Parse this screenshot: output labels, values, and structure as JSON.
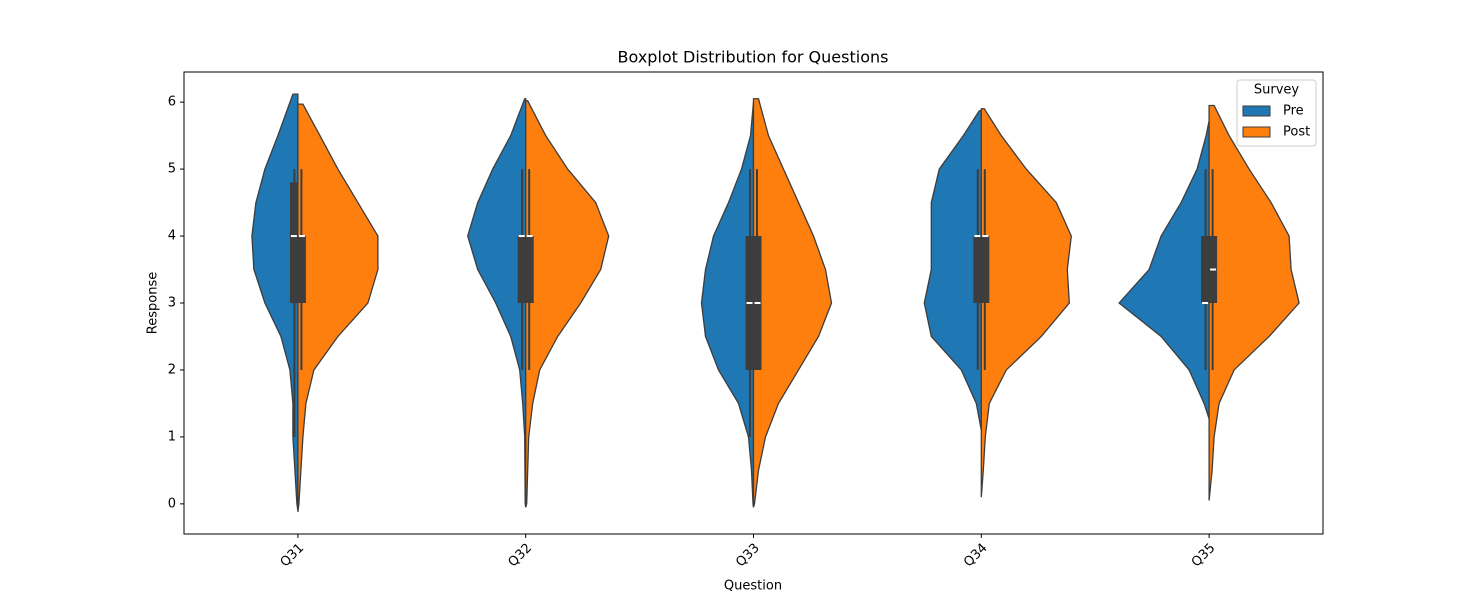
{
  "chart_data": {
    "type": "violin",
    "title": "Boxplot Distribution for Questions",
    "x_label": "Question",
    "y_label": "Response",
    "categories": [
      "Q31",
      "Q32",
      "Q33",
      "Q34",
      "Q35"
    ],
    "ylim": [
      -0.45,
      6.45
    ],
    "yticks": [
      0,
      1,
      2,
      3,
      4,
      5,
      6
    ],
    "legend_title": "Survey",
    "legend_position": "upper right",
    "series": [
      {
        "name": "Pre",
        "color": "#1f77b4",
        "violins": [
          {
            "y": [
              6.12,
              5.5,
              5,
              4.5,
              4,
              3.5,
              3,
              2.5,
              2,
              1.5,
              1,
              0.5,
              0,
              -0.1
            ],
            "density": [
              0.05,
              0.2,
              0.33,
              0.42,
              0.46,
              0.44,
              0.33,
              0.17,
              0.08,
              0.05,
              0.05,
              0.03,
              0.01,
              0
            ],
            "whislo": 1,
            "q1": 3,
            "median": 4,
            "q3": 4.8,
            "whishi": 5
          },
          {
            "y": [
              6.05,
              5.5,
              5,
              4.5,
              4,
              3.5,
              3,
              2.5,
              2,
              1.5,
              1,
              0,
              -0.05
            ],
            "density": [
              0.01,
              0.15,
              0.33,
              0.48,
              0.58,
              0.48,
              0.3,
              0.15,
              0.06,
              0.03,
              0.01,
              0.005,
              0
            ],
            "whislo": 2,
            "q1": 3,
            "median": 4,
            "q3": 4,
            "whishi": 5
          },
          {
            "y": [
              6,
              5.5,
              5,
              4.5,
              4,
              3.5,
              3,
              2.5,
              2,
              1.5,
              1,
              0.5,
              0,
              -0.05
            ],
            "density": [
              0,
              0.03,
              0.12,
              0.25,
              0.4,
              0.48,
              0.52,
              0.48,
              0.35,
              0.15,
              0.05,
              0.02,
              0.005,
              0
            ],
            "whislo": 1,
            "q1": 2,
            "median": 3,
            "q3": 4,
            "whishi": 5
          },
          {
            "y": [
              5.87,
              5.5,
              5,
              4.5,
              4,
              3.5,
              3,
              2.5,
              2,
              1.5,
              1.1
            ],
            "density": [
              0.02,
              0.18,
              0.42,
              0.5,
              0.5,
              0.5,
              0.57,
              0.5,
              0.2,
              0.05,
              0
            ],
            "whislo": 2,
            "q1": 3,
            "median": 4,
            "q3": 4,
            "whishi": 5
          },
          {
            "y": [
              5.72,
              5.5,
              5,
              4.5,
              4,
              3.5,
              3,
              2.5,
              2,
              1.5,
              1.27
            ],
            "density": [
              0,
              0.03,
              0.12,
              0.28,
              0.48,
              0.6,
              0.9,
              0.48,
              0.2,
              0.05,
              0
            ],
            "whislo": 2,
            "q1": 3,
            "median": 3,
            "q3": 4,
            "whishi": 5
          }
        ]
      },
      {
        "name": "Post",
        "color": "#ff7f0e",
        "violins": [
          {
            "y": [
              5.97,
              5.5,
              5,
              4.5,
              4,
              3.5,
              3,
              2.5,
              2,
              1.5,
              1,
              0.5,
              0,
              -0.12
            ],
            "density": [
              0.05,
              0.22,
              0.4,
              0.6,
              0.8,
              0.8,
              0.7,
              0.4,
              0.16,
              0.08,
              0.05,
              0.03,
              0.01,
              0
            ],
            "whislo": 2,
            "q1": 3,
            "median": 4,
            "q3": 4,
            "whishi": 5
          },
          {
            "y": [
              6.02,
              5.5,
              5,
              4.5,
              4,
              3.5,
              3,
              2.5,
              2,
              1.5,
              1,
              0,
              -0.05
            ],
            "density": [
              0.02,
              0.2,
              0.42,
              0.7,
              0.83,
              0.75,
              0.55,
              0.32,
              0.14,
              0.07,
              0.03,
              0.01,
              0
            ],
            "whislo": 2,
            "q1": 3,
            "median": 4,
            "q3": 4,
            "whishi": 5
          },
          {
            "y": [
              6.05,
              5.5,
              5,
              4.5,
              4,
              3.5,
              3,
              2.5,
              2,
              1.5,
              1,
              0.5,
              0,
              -0.05
            ],
            "density": [
              0.05,
              0.15,
              0.3,
              0.45,
              0.6,
              0.72,
              0.78,
              0.65,
              0.45,
              0.25,
              0.12,
              0.05,
              0.01,
              0
            ],
            "whislo": 2,
            "q1": 2,
            "median": 3,
            "q3": 4,
            "whishi": 5
          },
          {
            "y": [
              5.9,
              5.5,
              5,
              4.5,
              4,
              3.5,
              3,
              2.5,
              2,
              1.5,
              1,
              0.5,
              0.1
            ],
            "density": [
              0.03,
              0.2,
              0.45,
              0.75,
              0.9,
              0.86,
              0.88,
              0.6,
              0.25,
              0.08,
              0.04,
              0.02,
              0
            ],
            "whislo": 2,
            "q1": 3,
            "median": 4,
            "q3": 4,
            "whishi": 5
          },
          {
            "y": [
              5.95,
              5.5,
              5,
              4.5,
              4,
              3.5,
              3,
              2.5,
              2,
              1.5,
              1,
              0.5,
              0.05
            ],
            "density": [
              0.05,
              0.2,
              0.4,
              0.62,
              0.8,
              0.82,
              0.9,
              0.6,
              0.25,
              0.1,
              0.05,
              0.03,
              0
            ],
            "whislo": 2,
            "q1": 3,
            "median": 3.5,
            "q3": 4,
            "whishi": 5
          }
        ]
      }
    ]
  }
}
